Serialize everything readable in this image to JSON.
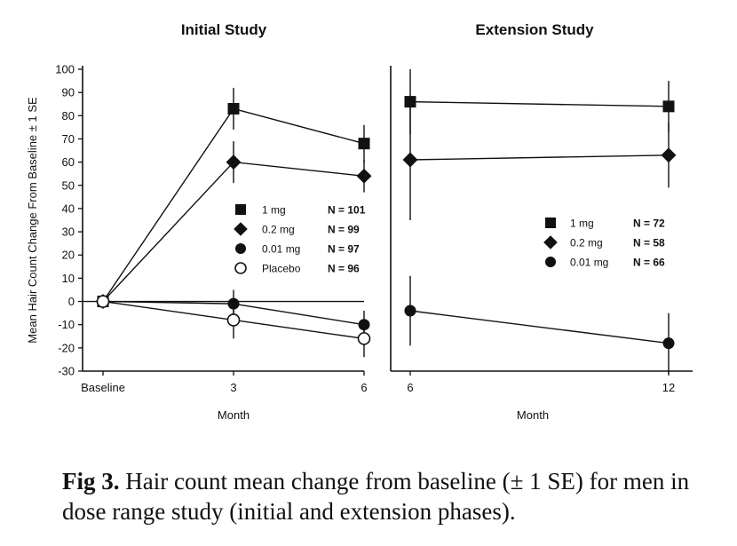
{
  "chart_data": [
    {
      "type": "line",
      "title": "Initial Study",
      "xlabel": "Month",
      "ylabel": "Mean Hair Count Change From Baseline ± 1 SE",
      "x": [
        0,
        3,
        6
      ],
      "xticklabels": [
        "Baseline",
        "3",
        "6"
      ],
      "ylim": [
        -30,
        100
      ],
      "yticks": [
        -30,
        -20,
        -10,
        0,
        10,
        20,
        30,
        40,
        50,
        60,
        70,
        80,
        90,
        100
      ],
      "legend_position": "center-right",
      "series": [
        {
          "name": "1 mg",
          "marker": "square",
          "n_label": "N = 101",
          "values": [
            0,
            83,
            68
          ],
          "se": [
            0,
            9,
            8
          ]
        },
        {
          "name": "0.2 mg",
          "marker": "diamond",
          "n_label": "N = 99",
          "values": [
            0,
            60,
            54
          ],
          "se": [
            0,
            9,
            7
          ]
        },
        {
          "name": "0.01 mg",
          "marker": "circle",
          "n_label": "N = 97",
          "values": [
            0,
            -1,
            -10
          ],
          "se": [
            0,
            6,
            6
          ]
        },
        {
          "name": "Placebo",
          "marker": "open-circle",
          "n_label": "N = 96",
          "values": [
            0,
            -8,
            -16
          ],
          "se": [
            0,
            8,
            8
          ]
        }
      ]
    },
    {
      "type": "line",
      "title": "Extension Study",
      "xlabel": "Month",
      "x": [
        6,
        12
      ],
      "xticklabels": [
        "6",
        "12"
      ],
      "ylim": [
        -30,
        100
      ],
      "legend_position": "center-right",
      "series": [
        {
          "name": "1 mg",
          "marker": "square",
          "n_label": "N = 72",
          "values": [
            86,
            84
          ],
          "se": [
            14,
            11
          ]
        },
        {
          "name": "0.2 mg",
          "marker": "diamond",
          "n_label": "N = 58",
          "values": [
            61,
            63
          ],
          "se": [
            26,
            14
          ]
        },
        {
          "name": "0.01 mg",
          "marker": "circle",
          "n_label": "N = 66",
          "values": [
            -4,
            -18
          ],
          "se": [
            15,
            13
          ]
        }
      ]
    }
  ],
  "caption": {
    "label": "Fig 3.",
    "text": " Hair count mean change from baseline (± 1 SE) for men in dose range study (initial and extension phases)."
  }
}
